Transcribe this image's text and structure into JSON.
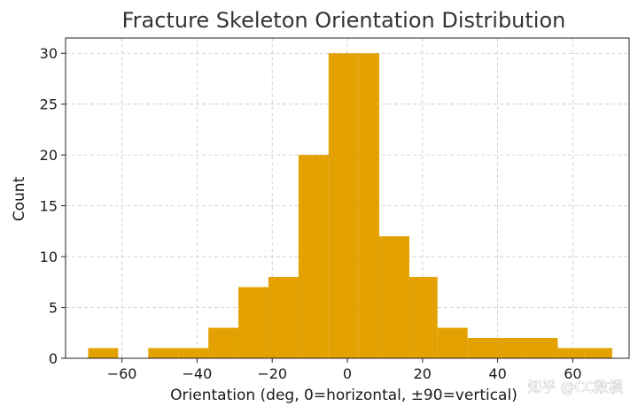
{
  "chart_data": {
    "type": "bar",
    "title": "Fracture Skeleton Orientation Distribution",
    "xlabel": "Orientation (deg, 0=horizontal, ±90=vertical)",
    "ylabel": "Count",
    "xlim": [
      -75,
      75
    ],
    "ylim": [
      0,
      31.5
    ],
    "xticks": [
      -60,
      -40,
      -20,
      0,
      20,
      40,
      60
    ],
    "yticks": [
      0,
      5,
      10,
      15,
      20,
      25,
      30
    ],
    "grid": true,
    "bar_color": "#E3A102",
    "bins": [
      {
        "x0": -69.0,
        "x1": -61.0,
        "count": 1
      },
      {
        "x0": -61.0,
        "x1": -53.0,
        "count": 0
      },
      {
        "x0": -53.0,
        "x1": -45.0,
        "count": 1
      },
      {
        "x0": -45.0,
        "x1": -37.0,
        "count": 1
      },
      {
        "x0": -37.0,
        "x1": -29.0,
        "count": 3
      },
      {
        "x0": -29.0,
        "x1": -21.0,
        "count": 7
      },
      {
        "x0": -21.0,
        "x1": -13.0,
        "count": 8
      },
      {
        "x0": -13.0,
        "x1": -5.0,
        "count": 20
      },
      {
        "x0": -5.0,
        "x1": 3.0,
        "count": 30
      },
      {
        "x0": 3.0,
        "x1": 8.5,
        "count": 30
      },
      {
        "x0": 8.5,
        "x1": 16.5,
        "count": 12
      },
      {
        "x0": 16.5,
        "x1": 24.0,
        "count": 8
      },
      {
        "x0": 24.0,
        "x1": 32.0,
        "count": 3
      },
      {
        "x0": 32.0,
        "x1": 40.0,
        "count": 2
      },
      {
        "x0": 40.0,
        "x1": 48.0,
        "count": 2
      },
      {
        "x0": 48.0,
        "x1": 56.0,
        "count": 2
      },
      {
        "x0": 56.0,
        "x1": 63.0,
        "count": 1
      },
      {
        "x0": 63.0,
        "x1": 70.5,
        "count": 1
      }
    ]
  },
  "watermark": "知乎 @CC数模"
}
